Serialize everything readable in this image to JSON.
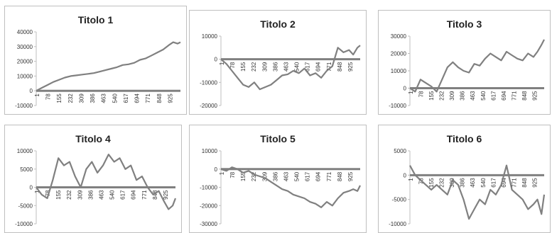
{
  "x_tick_labels": [
    "1",
    "78",
    "155",
    "232",
    "309",
    "386",
    "463",
    "540",
    "617",
    "694",
    "771",
    "848",
    "925"
  ],
  "colors": {
    "series": "#808080",
    "axis": "#808080",
    "panel_border": "#bfbfbf",
    "text": "#222222"
  },
  "chart_data": [
    {
      "type": "line",
      "title": "Titolo 1",
      "xlabel": "",
      "ylabel": "",
      "x_range": [
        1,
        1000
      ],
      "ylim": [
        -10000,
        40000
      ],
      "y_ticks": [
        -10000,
        0,
        10000,
        20000,
        30000,
        40000
      ],
      "y_tick_labels": [
        "-10000",
        "0",
        "10000",
        "20000",
        "30000",
        "40000"
      ],
      "grid": false,
      "legend": "none",
      "series": [
        {
          "x": [
            1,
            40,
            80,
            120,
            160,
            200,
            240,
            280,
            320,
            360,
            400,
            440,
            480,
            520,
            560,
            600,
            640,
            680,
            720,
            760,
            800,
            840,
            880,
            920,
            950,
            980,
            1000
          ],
          "y": [
            0,
            2000,
            4000,
            6000,
            7500,
            9000,
            10000,
            10500,
            11000,
            11500,
            12000,
            13000,
            14000,
            15000,
            16000,
            17500,
            18000,
            19000,
            21000,
            22000,
            24000,
            26000,
            28000,
            31000,
            33000,
            32000,
            33000
          ]
        }
      ]
    },
    {
      "type": "line",
      "title": "Titolo 2",
      "xlabel": "",
      "ylabel": "",
      "x_range": [
        1,
        1000
      ],
      "ylim": [
        -20000,
        10000
      ],
      "y_ticks": [
        -20000,
        -10000,
        0,
        10000
      ],
      "y_tick_labels": [
        "-20000",
        "-10000",
        "0",
        "10000"
      ],
      "grid": false,
      "legend": "none",
      "series": [
        {
          "x": [
            1,
            40,
            80,
            120,
            160,
            200,
            240,
            280,
            320,
            360,
            400,
            440,
            480,
            520,
            560,
            600,
            640,
            680,
            720,
            760,
            800,
            840,
            880,
            920,
            950,
            980,
            1000
          ],
          "y": [
            0,
            -2000,
            -5000,
            -8000,
            -11000,
            -12000,
            -10000,
            -13000,
            -12000,
            -11000,
            -9000,
            -7000,
            -6500,
            -5000,
            -6000,
            -4000,
            -7000,
            -6000,
            -8000,
            -5000,
            -3000,
            5000,
            3000,
            4000,
            2000,
            5000,
            6000
          ]
        }
      ]
    },
    {
      "type": "line",
      "title": "Titolo 3",
      "xlabel": "",
      "ylabel": "",
      "x_range": [
        1,
        1000
      ],
      "ylim": [
        -10000,
        30000
      ],
      "y_ticks": [
        -10000,
        0,
        10000,
        20000,
        30000
      ],
      "y_tick_labels": [
        "-10000",
        "0",
        "10000",
        "20000",
        "30000"
      ],
      "grid": false,
      "legend": "none",
      "series": [
        {
          "x": [
            1,
            40,
            80,
            120,
            160,
            200,
            240,
            280,
            320,
            360,
            400,
            440,
            480,
            520,
            560,
            600,
            640,
            680,
            720,
            760,
            800,
            840,
            880,
            920,
            950,
            980,
            1000
          ],
          "y": [
            0,
            -2000,
            5000,
            3000,
            1000,
            -2000,
            5000,
            12000,
            15000,
            12000,
            10000,
            9000,
            14000,
            13000,
            17000,
            20000,
            18000,
            16000,
            21000,
            19000,
            17000,
            16000,
            20000,
            18000,
            21000,
            25000,
            28000
          ]
        }
      ]
    },
    {
      "type": "line",
      "title": "Titolo 4",
      "xlabel": "",
      "ylabel": "",
      "x_range": [
        1,
        1000
      ],
      "ylim": [
        -10000,
        10000
      ],
      "y_ticks": [
        -10000,
        -5000,
        0,
        5000,
        10000
      ],
      "y_tick_labels": [
        "-10000",
        "-5000",
        "0",
        "5000",
        "10000"
      ],
      "grid": false,
      "legend": "none",
      "series": [
        {
          "x": [
            1,
            40,
            80,
            120,
            160,
            200,
            240,
            280,
            320,
            360,
            400,
            440,
            480,
            520,
            560,
            600,
            640,
            680,
            720,
            760,
            800,
            840,
            880,
            920,
            950,
            980,
            1000
          ],
          "y": [
            0,
            -2000,
            -3000,
            2000,
            8000,
            6000,
            7000,
            3000,
            0,
            5000,
            7000,
            4000,
            6000,
            9000,
            7000,
            8000,
            5000,
            6000,
            2000,
            3000,
            0,
            -2000,
            -1000,
            -4000,
            -6000,
            -5000,
            -3000
          ]
        }
      ]
    },
    {
      "type": "line",
      "title": "Titolo 5",
      "xlabel": "",
      "ylabel": "",
      "x_range": [
        1,
        1000
      ],
      "ylim": [
        -30000,
        10000
      ],
      "y_ticks": [
        -30000,
        -20000,
        -10000,
        0,
        10000
      ],
      "y_tick_labels": [
        "-30000",
        "-20000",
        "-10000",
        "0",
        "10000"
      ],
      "grid": false,
      "legend": "none",
      "series": [
        {
          "x": [
            1,
            40,
            80,
            120,
            160,
            200,
            240,
            280,
            320,
            360,
            400,
            440,
            480,
            520,
            560,
            600,
            640,
            680,
            720,
            760,
            800,
            840,
            880,
            920,
            950,
            980,
            1000
          ],
          "y": [
            0,
            -1000,
            1000,
            0,
            -2000,
            -1000,
            -3000,
            -4000,
            -5000,
            -7000,
            -9000,
            -11000,
            -12000,
            -14000,
            -15000,
            -16000,
            -18000,
            -19000,
            -21000,
            -18000,
            -20000,
            -16000,
            -13000,
            -12000,
            -11000,
            -12000,
            -9000
          ]
        }
      ]
    },
    {
      "type": "line",
      "title": "Titolo 6",
      "xlabel": "",
      "ylabel": "",
      "x_range": [
        1,
        1000
      ],
      "ylim": [
        -10000,
        5000
      ],
      "y_ticks": [
        -10000,
        -5000,
        0,
        5000
      ],
      "y_tick_labels": [
        "-10000",
        "-5000",
        "0",
        "5000"
      ],
      "grid": false,
      "legend": "none",
      "series": [
        {
          "x": [
            1,
            40,
            80,
            120,
            160,
            200,
            240,
            280,
            320,
            360,
            400,
            440,
            480,
            520,
            560,
            600,
            640,
            680,
            720,
            760,
            800,
            840,
            880,
            920,
            950,
            980,
            1000
          ],
          "y": [
            2000,
            0,
            -1000,
            -2000,
            -3000,
            -2000,
            -3000,
            -4000,
            -1000,
            -2000,
            -5000,
            -9000,
            -7000,
            -5000,
            -6000,
            -3000,
            -4000,
            -2000,
            2000,
            -3000,
            -4000,
            -5000,
            -7000,
            -6000,
            -5000,
            -8000,
            -4000
          ]
        }
      ]
    }
  ]
}
